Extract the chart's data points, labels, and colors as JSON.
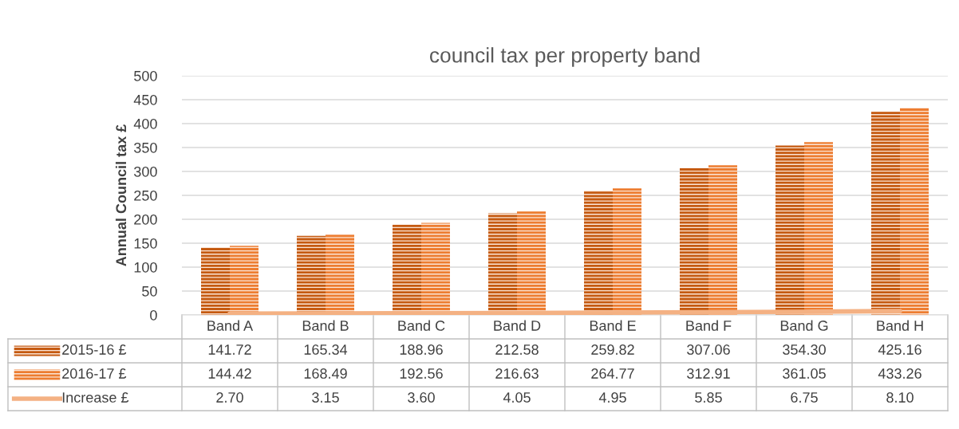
{
  "chart_data": {
    "type": "bar",
    "title": "council tax per property band",
    "ylabel": "Annual Council tax £",
    "categories": [
      "Band A",
      "Band B",
      "Band C",
      "Band D",
      "Band E",
      "Band F",
      "Band G",
      "Band H"
    ],
    "series": [
      {
        "name": "2015-16 £",
        "color": "#c55a11",
        "values": [
          141.72,
          165.34,
          188.96,
          212.58,
          259.82,
          307.06,
          354.3,
          425.16
        ],
        "value_labels": [
          "141.72",
          "165.34",
          "188.96",
          "212.58",
          "259.82",
          "307.06",
          "354.30",
          "425.16"
        ]
      },
      {
        "name": "2016-17 £",
        "color": "#ed7d31",
        "values": [
          144.42,
          168.49,
          192.56,
          216.63,
          264.77,
          312.91,
          361.05,
          433.26
        ],
        "value_labels": [
          "144.42",
          "168.49",
          "192.56",
          "216.63",
          "264.77",
          "312.91",
          "361.05",
          "433.26"
        ]
      },
      {
        "name": "Increase £",
        "type": "line",
        "color": "#f4b183",
        "values": [
          2.7,
          3.15,
          3.6,
          4.05,
          4.95,
          5.85,
          6.75,
          8.1
        ],
        "value_labels": [
          "2.70",
          "3.15",
          "3.60",
          "4.05",
          "4.95",
          "5.85",
          "6.75",
          "8.10"
        ]
      }
    ],
    "ylim": [
      0,
      500
    ],
    "yticks": [
      0,
      50,
      100,
      150,
      200,
      250,
      300,
      350,
      400,
      450,
      500
    ],
    "grid": "y",
    "legend": "bottom left"
  }
}
